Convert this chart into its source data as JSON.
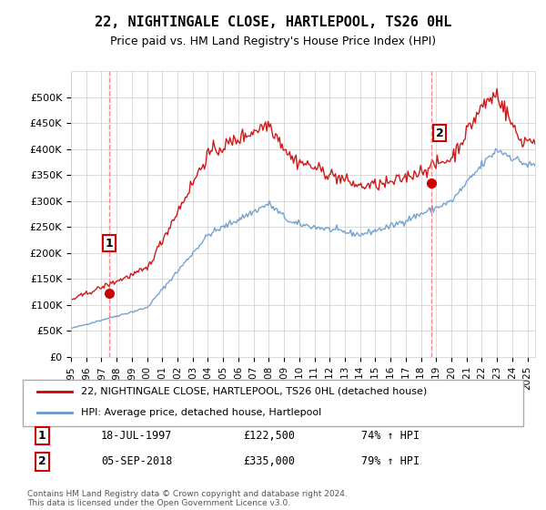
{
  "title": "22, NIGHTINGALE CLOSE, HARTLEPOOL, TS26 0HL",
  "subtitle": "Price paid vs. HM Land Registry's House Price Index (HPI)",
  "legend_line1": "22, NIGHTINGALE CLOSE, HARTLEPOOL, TS26 0HL (detached house)",
  "legend_line2": "HPI: Average price, detached house, Hartlepool",
  "annotation1_label": "1",
  "annotation1_date": "18-JUL-1997",
  "annotation1_price": "£122,500",
  "annotation1_hpi": "74% ↑ HPI",
  "annotation2_label": "2",
  "annotation2_date": "05-SEP-2018",
  "annotation2_price": "£335,000",
  "annotation2_hpi": "79% ↑ HPI",
  "footer": "Contains HM Land Registry data © Crown copyright and database right 2024.\nThis data is licensed under the Open Government Licence v3.0.",
  "red_color": "#cc0000",
  "blue_color": "#6699cc",
  "dashed_color": "#ff6666",
  "ylim_min": 0,
  "ylim_max": 550000,
  "yticks": [
    0,
    50000,
    100000,
    150000,
    200000,
    250000,
    300000,
    350000,
    400000,
    450000,
    500000
  ],
  "sale1_year": 1997.54,
  "sale1_value": 122500,
  "sale2_year": 2018.67,
  "sale2_value": 335000,
  "xmin": 1995,
  "xmax": 2025.5
}
